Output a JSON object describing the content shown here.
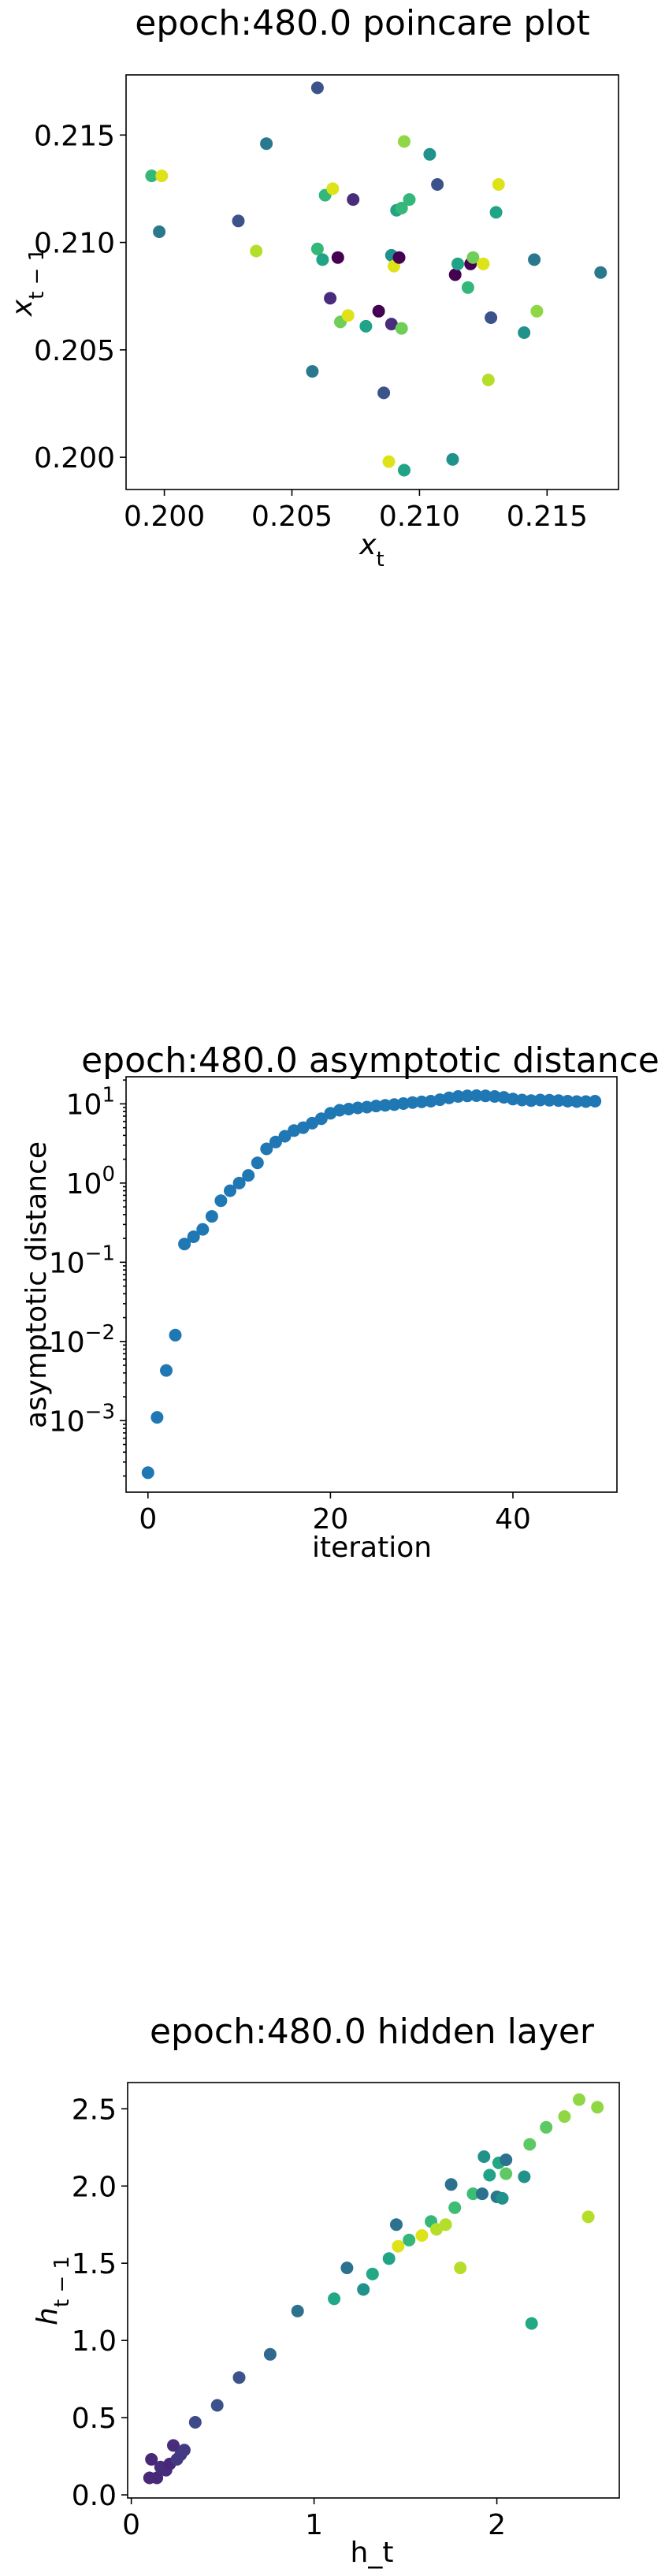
{
  "chart_data": [
    {
      "type": "scatter",
      "title": "epoch:480.0 poincare plot",
      "xlabel": "x_t",
      "ylabel": "x_{t-1}",
      "xlim": [
        0.1985,
        0.2178
      ],
      "ylim": [
        0.1985,
        0.2178
      ],
      "x_ticks": [
        0.2,
        0.205,
        0.21,
        0.215
      ],
      "x_tick_labels": [
        "0.200",
        "0.205",
        "0.210",
        "0.215"
      ],
      "y_ticks": [
        0.2,
        0.205,
        0.21,
        0.215
      ],
      "y_tick_labels": [
        "0.200",
        "0.205",
        "0.210",
        "0.215"
      ],
      "grid": false,
      "points": [
        {
          "x": 0.1995,
          "y": 0.2131,
          "color": "#35b779"
        },
        {
          "x": 0.1998,
          "y": 0.2105,
          "color": "#2a788e"
        },
        {
          "x": 0.1999,
          "y": 0.2131,
          "color": "#dde318"
        },
        {
          "x": 0.2029,
          "y": 0.211,
          "color": "#3b528b"
        },
        {
          "x": 0.2036,
          "y": 0.2096,
          "color": "#b5de2b"
        },
        {
          "x": 0.204,
          "y": 0.2146,
          "color": "#2a788e"
        },
        {
          "x": 0.2058,
          "y": 0.204,
          "color": "#2a788e"
        },
        {
          "x": 0.206,
          "y": 0.2172,
          "color": "#3b528b"
        },
        {
          "x": 0.206,
          "y": 0.2097,
          "color": "#35b779"
        },
        {
          "x": 0.2062,
          "y": 0.2092,
          "color": "#20a386"
        },
        {
          "x": 0.2063,
          "y": 0.2122,
          "color": "#35b779"
        },
        {
          "x": 0.2065,
          "y": 0.2074,
          "color": "#472d7b"
        },
        {
          "x": 0.2066,
          "y": 0.2125,
          "color": "#dde318"
        },
        {
          "x": 0.2068,
          "y": 0.2093,
          "color": "#440154"
        },
        {
          "x": 0.2069,
          "y": 0.2063,
          "color": "#6ece58"
        },
        {
          "x": 0.2072,
          "y": 0.2066,
          "color": "#dde318"
        },
        {
          "x": 0.2074,
          "y": 0.212,
          "color": "#472d7b"
        },
        {
          "x": 0.2079,
          "y": 0.2061,
          "color": "#20a386"
        },
        {
          "x": 0.2084,
          "y": 0.2068,
          "color": "#440154"
        },
        {
          "x": 0.2086,
          "y": 0.203,
          "color": "#3b528b"
        },
        {
          "x": 0.2088,
          "y": 0.1998,
          "color": "#dde318"
        },
        {
          "x": 0.2089,
          "y": 0.2062,
          "color": "#472d7b"
        },
        {
          "x": 0.2089,
          "y": 0.2094,
          "color": "#21918c"
        },
        {
          "x": 0.209,
          "y": 0.2089,
          "color": "#dde318"
        },
        {
          "x": 0.2091,
          "y": 0.2115,
          "color": "#20a386"
        },
        {
          "x": 0.2092,
          "y": 0.2093,
          "color": "#440154"
        },
        {
          "x": 0.2093,
          "y": 0.206,
          "color": "#6ece58"
        },
        {
          "x": 0.2093,
          "y": 0.2116,
          "color": "#35b779"
        },
        {
          "x": 0.2094,
          "y": 0.1994,
          "color": "#20a386"
        },
        {
          "x": 0.2094,
          "y": 0.2147,
          "color": "#8fd744"
        },
        {
          "x": 0.2096,
          "y": 0.212,
          "color": "#35b779"
        },
        {
          "x": 0.2104,
          "y": 0.2141,
          "color": "#21918c"
        },
        {
          "x": 0.2107,
          "y": 0.2127,
          "color": "#3b528b"
        },
        {
          "x": 0.2113,
          "y": 0.1999,
          "color": "#21918c"
        },
        {
          "x": 0.2114,
          "y": 0.2085,
          "color": "#440154"
        },
        {
          "x": 0.2115,
          "y": 0.209,
          "color": "#20a386"
        },
        {
          "x": 0.2119,
          "y": 0.2079,
          "color": "#35b779"
        },
        {
          "x": 0.212,
          "y": 0.209,
          "color": "#440154"
        },
        {
          "x": 0.2121,
          "y": 0.2093,
          "color": "#6ece58"
        },
        {
          "x": 0.2125,
          "y": 0.209,
          "color": "#dde318"
        },
        {
          "x": 0.2127,
          "y": 0.2036,
          "color": "#b5de2b"
        },
        {
          "x": 0.2128,
          "y": 0.2065,
          "color": "#3b528b"
        },
        {
          "x": 0.213,
          "y": 0.2114,
          "color": "#20a386"
        },
        {
          "x": 0.2131,
          "y": 0.2127,
          "color": "#dde318"
        },
        {
          "x": 0.2141,
          "y": 0.2058,
          "color": "#21918c"
        },
        {
          "x": 0.2145,
          "y": 0.2092,
          "color": "#2a788e"
        },
        {
          "x": 0.2146,
          "y": 0.2068,
          "color": "#8fd744"
        },
        {
          "x": 0.2171,
          "y": 0.2086,
          "color": "#2a788e"
        }
      ]
    },
    {
      "type": "scatter",
      "title": "epoch:480.0 asymptotic distance",
      "xlabel": "iteration",
      "ylabel": "asymptotic distance",
      "yscale": "log",
      "xlim": [
        -2.4,
        51.4
      ],
      "ylim": [
        0.000125,
        22
      ],
      "x_ticks": [
        0,
        20,
        40
      ],
      "x_tick_labels": [
        "0",
        "20",
        "40"
      ],
      "y_ticks": [
        0.001,
        0.01,
        0.1,
        1,
        10
      ],
      "y_tick_labels": [
        {
          "base": "10",
          "exp": "−3"
        },
        {
          "base": "10",
          "exp": "−2"
        },
        {
          "base": "10",
          "exp": "−1"
        },
        {
          "base": "10",
          "exp": "0"
        },
        {
          "base": "10",
          "exp": "1"
        }
      ],
      "grid": false,
      "color": "#1f77b4",
      "x": [
        0,
        1,
        2,
        3,
        4,
        5,
        6,
        7,
        8,
        9,
        10,
        11,
        12,
        13,
        14,
        15,
        16,
        17,
        18,
        19,
        20,
        21,
        22,
        23,
        24,
        25,
        26,
        27,
        28,
        29,
        30,
        31,
        32,
        33,
        34,
        35,
        36,
        37,
        38,
        39,
        40,
        41,
        42,
        43,
        44,
        45,
        46,
        47,
        48,
        49
      ],
      "y": [
        0.00022,
        0.0011,
        0.0043,
        0.012,
        0.17,
        0.21,
        0.26,
        0.38,
        0.6,
        0.8,
        1.0,
        1.25,
        1.8,
        2.7,
        3.3,
        3.9,
        4.6,
        5.0,
        5.7,
        6.5,
        7.6,
        8.3,
        8.6,
        8.9,
        9.1,
        9.4,
        9.6,
        9.8,
        10.1,
        10.4,
        10.6,
        10.8,
        11.3,
        11.9,
        12.4,
        12.6,
        12.7,
        12.6,
        12.4,
        12.1,
        11.5,
        11.2,
        11.0,
        11.2,
        11.1,
        11.0,
        10.8,
        10.7,
        10.7,
        10.8
      ]
    },
    {
      "type": "scatter",
      "title": "epoch:480.0 hidden layer",
      "xlabel": "h_t",
      "ylabel": "h_{t-1}",
      "xlim": [
        -0.02,
        2.67
      ],
      "ylim": [
        -0.02,
        2.67
      ],
      "x_ticks": [
        0,
        1,
        2
      ],
      "x_tick_labels": [
        "0",
        "1",
        "2"
      ],
      "y_ticks": [
        0.0,
        0.5,
        1.0,
        1.5,
        2.0,
        2.5
      ],
      "y_tick_labels": [
        "0.0",
        "0.5",
        "1.0",
        "1.5",
        "2.0",
        "2.5"
      ],
      "grid": false,
      "points": [
        {
          "x": 0.1,
          "y": 0.11,
          "color": "#482878"
        },
        {
          "x": 0.14,
          "y": 0.11,
          "color": "#482878"
        },
        {
          "x": 0.11,
          "y": 0.23,
          "color": "#482878"
        },
        {
          "x": 0.16,
          "y": 0.18,
          "color": "#472d7b"
        },
        {
          "x": 0.19,
          "y": 0.16,
          "color": "#472d7b"
        },
        {
          "x": 0.21,
          "y": 0.2,
          "color": "#482878"
        },
        {
          "x": 0.23,
          "y": 0.32,
          "color": "#472d7b"
        },
        {
          "x": 0.25,
          "y": 0.23,
          "color": "#443983"
        },
        {
          "x": 0.27,
          "y": 0.26,
          "color": "#443983"
        },
        {
          "x": 0.29,
          "y": 0.29,
          "color": "#443983"
        },
        {
          "x": 0.35,
          "y": 0.47,
          "color": "#3e4989"
        },
        {
          "x": 0.47,
          "y": 0.58,
          "color": "#3b528b"
        },
        {
          "x": 0.59,
          "y": 0.76,
          "color": "#3b528b"
        },
        {
          "x": 0.76,
          "y": 0.91,
          "color": "#31688e"
        },
        {
          "x": 0.91,
          "y": 1.19,
          "color": "#2c728e"
        },
        {
          "x": 1.11,
          "y": 1.27,
          "color": "#22a884"
        },
        {
          "x": 1.18,
          "y": 1.47,
          "color": "#2c728e"
        },
        {
          "x": 1.27,
          "y": 1.33,
          "color": "#21918c"
        },
        {
          "x": 1.32,
          "y": 1.43,
          "color": "#22a884"
        },
        {
          "x": 1.41,
          "y": 1.53,
          "color": "#20a386"
        },
        {
          "x": 1.45,
          "y": 1.75,
          "color": "#2c728e"
        },
        {
          "x": 1.46,
          "y": 1.61,
          "color": "#dde318"
        },
        {
          "x": 1.52,
          "y": 1.65,
          "color": "#35b779"
        },
        {
          "x": 1.59,
          "y": 1.68,
          "color": "#dde318"
        },
        {
          "x": 1.64,
          "y": 1.77,
          "color": "#35b779"
        },
        {
          "x": 1.67,
          "y": 1.72,
          "color": "#b5de2b"
        },
        {
          "x": 1.72,
          "y": 1.75,
          "color": "#b5de2b"
        },
        {
          "x": 1.75,
          "y": 2.01,
          "color": "#2c728e"
        },
        {
          "x": 1.77,
          "y": 1.86,
          "color": "#3dbc74"
        },
        {
          "x": 1.8,
          "y": 1.47,
          "color": "#b5de2b"
        },
        {
          "x": 1.87,
          "y": 1.95,
          "color": "#3dbc74"
        },
        {
          "x": 1.92,
          "y": 1.95,
          "color": "#2c728e"
        },
        {
          "x": 1.93,
          "y": 2.19,
          "color": "#21918c"
        },
        {
          "x": 1.96,
          "y": 2.07,
          "color": "#20a386"
        },
        {
          "x": 2.0,
          "y": 1.93,
          "color": "#2a788e"
        },
        {
          "x": 2.01,
          "y": 2.15,
          "color": "#22a884"
        },
        {
          "x": 2.03,
          "y": 1.92,
          "color": "#21918c"
        },
        {
          "x": 2.05,
          "y": 2.08,
          "color": "#5ec962"
        },
        {
          "x": 2.05,
          "y": 2.17,
          "color": "#2c728e"
        },
        {
          "x": 2.15,
          "y": 2.06,
          "color": "#21918c"
        },
        {
          "x": 2.19,
          "y": 1.11,
          "color": "#22a884"
        },
        {
          "x": 2.18,
          "y": 2.27,
          "color": "#5ec962"
        },
        {
          "x": 2.27,
          "y": 2.38,
          "color": "#5ec962"
        },
        {
          "x": 2.37,
          "y": 2.45,
          "color": "#8fd744"
        },
        {
          "x": 2.45,
          "y": 2.56,
          "color": "#8fd744"
        },
        {
          "x": 2.5,
          "y": 1.8,
          "color": "#b5de2b"
        },
        {
          "x": 2.55,
          "y": 2.51,
          "color": "#8fd744"
        }
      ]
    }
  ]
}
